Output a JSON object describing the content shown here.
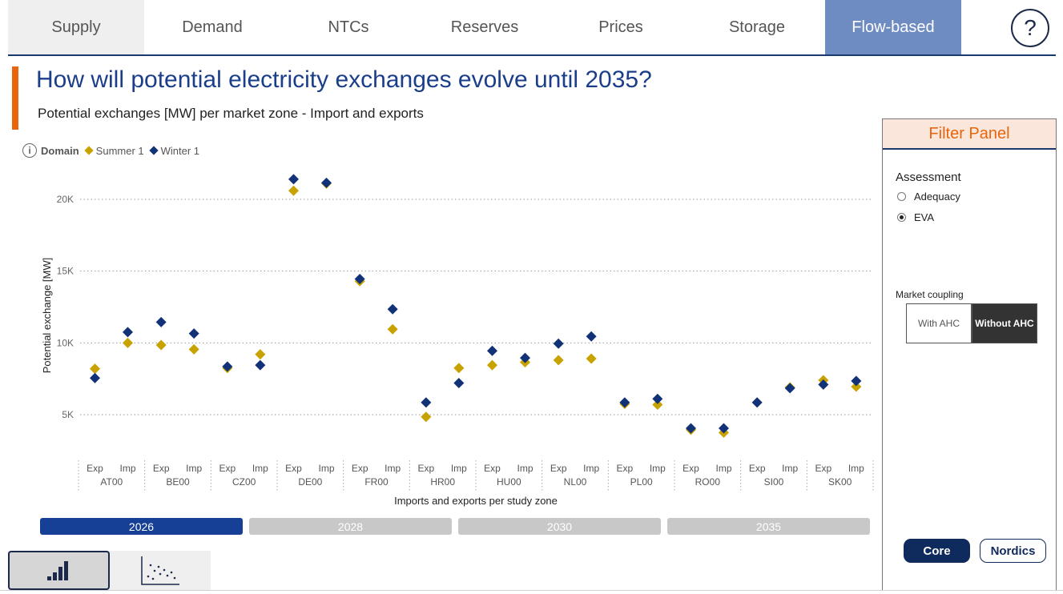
{
  "nav": {
    "tabs": [
      {
        "label": "Supply"
      },
      {
        "label": "Demand"
      },
      {
        "label": "NTCs"
      },
      {
        "label": "Reserves"
      },
      {
        "label": "Prices"
      },
      {
        "label": "Storage"
      },
      {
        "label": "Flow-based"
      }
    ],
    "active_tab": "Flow-based",
    "help_label": "?"
  },
  "header": {
    "title": "How will potential electricity exchanges evolve until 2035?",
    "subtitle": "Potential exchanges [MW] per market zone - Import and exports"
  },
  "legend": {
    "info": "i",
    "title": "Domain",
    "items": [
      {
        "label": "Summer 1",
        "color": "#c8a200"
      },
      {
        "label": "Winter 1",
        "color": "#123278"
      }
    ]
  },
  "chart_data": {
    "type": "scatter",
    "xlabel": "Imports and exports per study zone",
    "ylabel": "Potential exchange [MW]",
    "ylim": [
      1700,
      22200
    ],
    "yticks": [
      5000,
      10000,
      15000,
      20000
    ],
    "ytick_labels": [
      "5K",
      "10K",
      "15K",
      "20K"
    ],
    "grid": true,
    "zones": [
      "AT00",
      "BE00",
      "CZ00",
      "DE00",
      "FR00",
      "HR00",
      "HU00",
      "NL00",
      "PL00",
      "RO00",
      "SI00",
      "SK00"
    ],
    "categories": [
      "Exp",
      "Imp"
    ],
    "series": [
      {
        "name": "Summer 1",
        "color": "#c8a200",
        "values": [
          8200,
          10000,
          9850,
          9550,
          8250,
          9200,
          20600,
          21100,
          14300,
          10950,
          4850,
          8250,
          8450,
          8650,
          8800,
          8900,
          5750,
          5700,
          3950,
          3750,
          5850,
          6900,
          7400,
          6950
        ]
      },
      {
        "name": "Winter 1",
        "color": "#123278",
        "values": [
          7550,
          10750,
          11450,
          10650,
          8350,
          8450,
          21400,
          21150,
          14450,
          12350,
          5850,
          7200,
          9450,
          8950,
          9950,
          10450,
          5850,
          6100,
          4050,
          4050,
          5850,
          6850,
          7100,
          7350
        ]
      }
    ]
  },
  "years": {
    "items": [
      {
        "label": "2026"
      },
      {
        "label": "2028"
      },
      {
        "label": "2030"
      },
      {
        "label": "2035"
      }
    ],
    "active": "2026"
  },
  "views": {
    "bar": "bar-chart-icon",
    "scatter": "scatter-plot-icon"
  },
  "filter_panel": {
    "title": "Filter Panel",
    "assessment_label": "Assessment",
    "assessment_options": [
      {
        "label": "Adequacy",
        "checked": false
      },
      {
        "label": "EVA",
        "checked": true
      }
    ],
    "market_coupling_label": "Market coupling",
    "market_coupling_options": [
      {
        "label": "With AHC",
        "active": false
      },
      {
        "label": "Without AHC",
        "active": true
      }
    ],
    "regions": [
      {
        "label": "Core",
        "active": true
      },
      {
        "label": "Nordics",
        "active": false
      }
    ]
  }
}
